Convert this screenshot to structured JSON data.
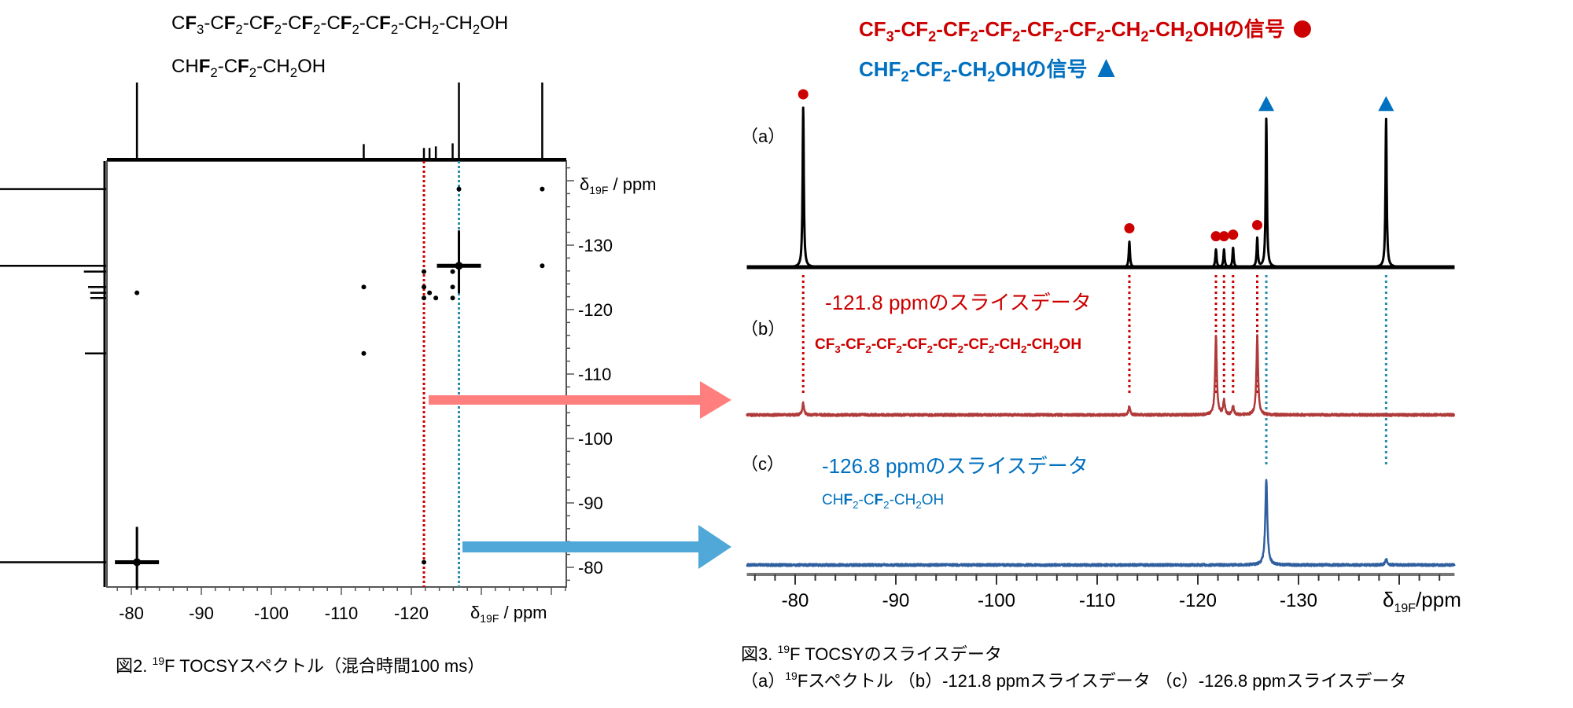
{
  "colors": {
    "red_signal": "#cc0000",
    "blue_signal": "#0070c0",
    "slice_b_trace": "#b03a3a",
    "slice_c_trace": "#2f5f9f",
    "red_dotted": "#cc0000",
    "blue_dotted": "#2a8ca8",
    "red_arrow": "#ff7f7f",
    "blue_arrow": "#4fa8d8"
  },
  "left_panel": {
    "formula_1": "CF3-CF2-CF2-CF2-CF2-CF2-CH2-CH2OH",
    "formula_2": "CHF2-CF2-CH2OH",
    "axis_symbol": "δ",
    "axis_subscript": "19F",
    "axis_unit": " / ppm",
    "caption": {
      "prefix": "図2. ",
      "sup": "19",
      "text": "F TOCSYスペクトル（混合時間100 ms）"
    }
  },
  "right_panel": {
    "legend": [
      {
        "text": "CF3-CF2-CF2-CF2-CF2-CF2-CH2-CH2OHの信号",
        "marker": "circle",
        "color": "#cc0000"
      },
      {
        "text": "CHF2-CF2-CH2OHの信号",
        "marker": "triangle",
        "color": "#0070c0"
      }
    ],
    "trace_labels": [
      "（a）",
      "（b）",
      "（c）"
    ],
    "slice_b": {
      "title": "-121.8 ppmのスライスデータ",
      "formula": "CF3-CF2-CF2-CF2-CF2-CF2-CH2-CH2OH"
    },
    "slice_c": {
      "title": "-126.8 ppmのスライスデータ",
      "formula": "CHF2-CF2-CH2OH"
    },
    "axis_symbol": "δ",
    "axis_subscript": "19F",
    "axis_unit": "/ppm",
    "caption_line1": {
      "prefix": "図3. ",
      "sup": "19",
      "text": "F TOCSYのスライスデータ"
    },
    "caption_line2": {
      "prefix": "（a）",
      "sup": "19",
      "text": "Fスペクトル （b）-121.8 ppmスライスデータ （c）-126.8 ppmスライスデータ"
    }
  },
  "chart_data": [
    {
      "type": "heatmap",
      "title": "",
      "xlabel": "δ19F / ppm",
      "ylabel": "δ19F / ppm",
      "xlim": [
        -76.5,
        -142
      ],
      "ylim": [
        -77,
        -143
      ],
      "xticks": [
        -80,
        -90,
        -100,
        -110,
        -120
      ],
      "yticks": [
        -80,
        -90,
        -100,
        -110,
        -120,
        -130
      ],
      "grid": false,
      "projection_peaks": [
        {
          "ppm": -80.8,
          "rel": 1.0
        },
        {
          "ppm": -113.2,
          "rel": 0.2
        },
        {
          "ppm": -121.8,
          "rel": 0.15
        },
        {
          "ppm": -122.6,
          "rel": 0.15
        },
        {
          "ppm": -123.5,
          "rel": 0.17
        },
        {
          "ppm": -125.9,
          "rel": 0.21
        },
        {
          "ppm": -126.8,
          "rel": 1.0
        },
        {
          "ppm": -138.7,
          "rel": 1.0
        }
      ],
      "cross_peaks": [
        {
          "x": -80.8,
          "y": -80.8,
          "strong": true
        },
        {
          "x": -121.8,
          "y": -80.8,
          "strong": false
        },
        {
          "x": -113.2,
          "y": -113.2,
          "strong": false
        },
        {
          "x": -80.8,
          "y": -122.6,
          "strong": false
        },
        {
          "x": -113.2,
          "y": -123.5,
          "strong": false
        },
        {
          "x": -121.8,
          "y": -121.8,
          "strong": false
        },
        {
          "x": -121.8,
          "y": -123.5,
          "strong": false
        },
        {
          "x": -122.6,
          "y": -122.6,
          "strong": false
        },
        {
          "x": -123.5,
          "y": -121.8,
          "strong": false
        },
        {
          "x": -125.9,
          "y": -123.5,
          "strong": false
        },
        {
          "x": -125.9,
          "y": -121.8,
          "strong": false
        },
        {
          "x": -121.8,
          "y": -125.9,
          "strong": false
        },
        {
          "x": -125.9,
          "y": -125.9,
          "strong": false
        },
        {
          "x": -126.8,
          "y": -126.8,
          "strong": true
        },
        {
          "x": -126.8,
          "y": -138.7,
          "strong": false
        },
        {
          "x": -138.7,
          "y": -138.7,
          "strong": false
        },
        {
          "x": -138.7,
          "y": -126.8,
          "strong": false
        }
      ],
      "slice_lines": [
        {
          "ppm": -121.8,
          "color": "#cc0000"
        },
        {
          "ppm": -126.8,
          "color": "#2a8ca8"
        }
      ]
    },
    {
      "type": "line",
      "title": "",
      "xlabel": "δ19F/ppm",
      "xlim": [
        -75.2,
        -145.5
      ],
      "xticks": [
        -80,
        -90,
        -100,
        -110,
        -120,
        -130
      ],
      "grid": false,
      "traces": [
        {
          "label": "（a）",
          "color": "#000000",
          "peaks": [
            {
              "ppm": -80.8,
              "rel": 1.0,
              "marker": "circle"
            },
            {
              "ppm": -113.2,
              "rel": 0.16,
              "marker": "circle"
            },
            {
              "ppm": -121.8,
              "rel": 0.11,
              "marker": "circle"
            },
            {
              "ppm": -122.6,
              "rel": 0.11,
              "marker": "circle"
            },
            {
              "ppm": -123.5,
              "rel": 0.12,
              "marker": "circle"
            },
            {
              "ppm": -125.9,
              "rel": 0.18,
              "marker": "circle"
            },
            {
              "ppm": -126.8,
              "rel": 0.93,
              "marker": "triangle"
            },
            {
              "ppm": -138.7,
              "rel": 0.93,
              "marker": "triangle"
            }
          ]
        },
        {
          "label": "（b）",
          "color": "#b03a3a",
          "peaks": [
            {
              "ppm": -80.8,
              "rel": 0.15
            },
            {
              "ppm": -113.2,
              "rel": 0.11
            },
            {
              "ppm": -121.8,
              "rel": 1.0
            },
            {
              "ppm": -122.6,
              "rel": 0.18
            },
            {
              "ppm": -123.5,
              "rel": 0.11
            },
            {
              "ppm": -125.9,
              "rel": 1.0
            }
          ]
        },
        {
          "label": "（c）",
          "color": "#2f5f9f",
          "peaks": [
            {
              "ppm": -126.8,
              "rel": 1.0
            },
            {
              "ppm": -138.7,
              "rel": 0.07
            }
          ]
        }
      ]
    }
  ]
}
